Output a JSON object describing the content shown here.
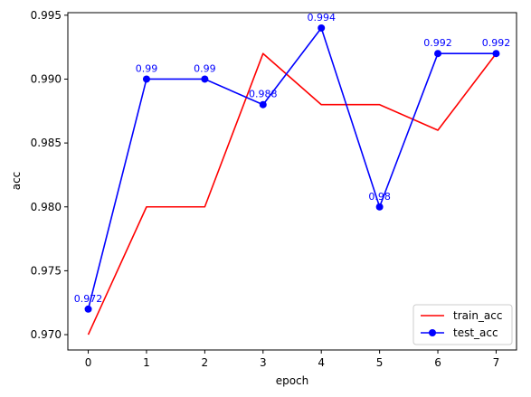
{
  "chart_data": {
    "type": "line",
    "xlabel": "epoch",
    "ylabel": "acc",
    "x": [
      0,
      1,
      2,
      3,
      4,
      5,
      6,
      7
    ],
    "xlim": [
      -0.35,
      7.35
    ],
    "ylim": [
      0.9688,
      0.9952
    ],
    "x_ticks": [
      "0",
      "1",
      "2",
      "3",
      "4",
      "5",
      "6",
      "7"
    ],
    "y_ticks": [
      "0.970",
      "0.975",
      "0.980",
      "0.985",
      "0.990",
      "0.995"
    ],
    "grid": false,
    "legend": {
      "location": "lower right"
    },
    "series": [
      {
        "name": "train_acc",
        "values": [
          0.97,
          0.98,
          0.98,
          0.992,
          0.988,
          0.988,
          0.986,
          0.992
        ],
        "color": "#ff0000",
        "marker": "none"
      },
      {
        "name": "test_acc",
        "values": [
          0.972,
          0.99,
          0.99,
          0.988,
          0.994,
          0.98,
          0.992,
          0.992
        ],
        "color": "#0000ff",
        "marker": "circle",
        "data_labels": [
          "0.972",
          "0.99",
          "0.99",
          "0.988",
          "0.994",
          "0.98",
          "0.992",
          "0.992"
        ]
      }
    ]
  }
}
